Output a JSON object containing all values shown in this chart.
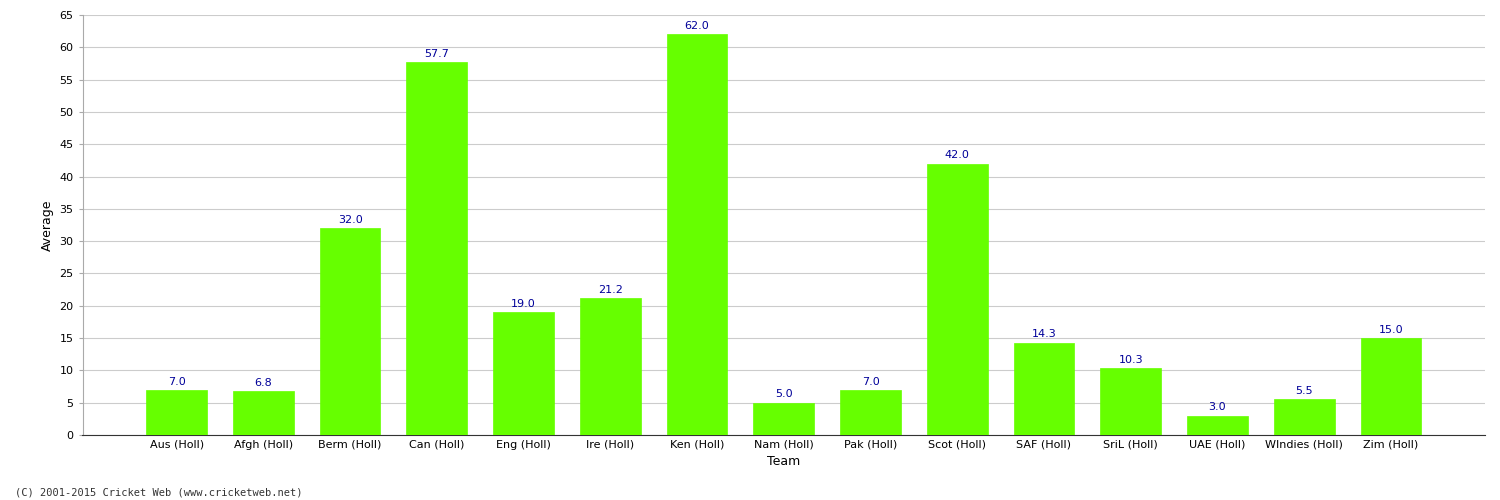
{
  "title": "",
  "xlabel": "Team",
  "ylabel": "Average",
  "categories": [
    "Aus (Holl)",
    "Afgh (Holl)",
    "Berm (Holl)",
    "Can (Holl)",
    "Eng (Holl)",
    "Ire (Holl)",
    "Ken (Holl)",
    "Nam (Holl)",
    "Pak (Holl)",
    "Scot (Holl)",
    "SAF (Holl)",
    "SriL (Holl)",
    "UAE (Holl)",
    "WIndies (Holl)",
    "Zim (Holl)"
  ],
  "values": [
    7.0,
    6.8,
    32.0,
    57.7,
    19.0,
    21.2,
    62.0,
    5.0,
    7.0,
    42.0,
    14.3,
    10.3,
    3.0,
    5.5,
    15.0
  ],
  "bar_color": "#66ff00",
  "bar_edge_color": "#66ff00",
  "label_color": "#000099",
  "grid_color": "#cccccc",
  "background_color": "#ffffff",
  "ylim": [
    0,
    65
  ],
  "yticks": [
    0,
    5,
    10,
    15,
    20,
    25,
    30,
    35,
    40,
    45,
    50,
    55,
    60,
    65
  ],
  "label_fontsize": 8,
  "axis_label_fontsize": 9,
  "tick_fontsize": 8,
  "footer": "(C) 2001-2015 Cricket Web (www.cricketweb.net)"
}
